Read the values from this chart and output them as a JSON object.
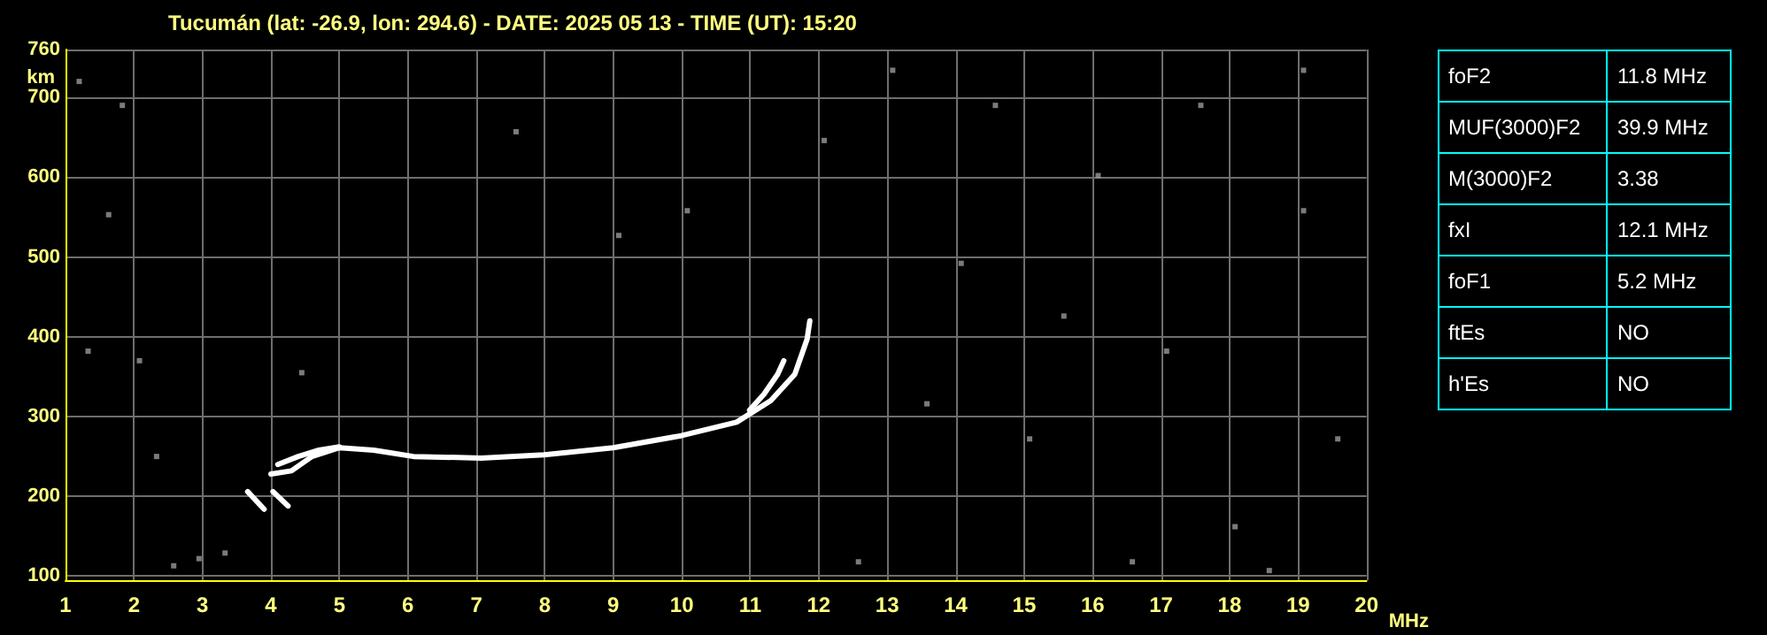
{
  "chart_data": [
    {
      "type": "line",
      "title": "Tucumán (lat: -26.9, lon: 294.6) - DATE: 2025 05 13 - TIME (UT): 15:20",
      "xlabel": "MHz",
      "ylabel": "km",
      "xlim": [
        1,
        20
      ],
      "ylim": [
        95,
        760
      ],
      "xticks": [
        1,
        2,
        3,
        4,
        5,
        6,
        7,
        8,
        9,
        10,
        11,
        12,
        13,
        14,
        15,
        16,
        17,
        18,
        19,
        20
      ],
      "yticks": [
        100,
        200,
        300,
        400,
        500,
        600,
        700,
        760
      ],
      "grid": true,
      "line_style": "solid",
      "series": [
        {
          "color": "#ffffff",
          "x": [
            4.0,
            4.3,
            4.6,
            5.0,
            5.5,
            6.08,
            7.07,
            7.99,
            9.0,
            9.99,
            10.8,
            11.3,
            11.65,
            11.83,
            11.87
          ],
          "values": [
            228,
            232,
            250,
            261,
            258,
            250,
            248,
            252,
            261,
            276,
            293,
            320,
            353,
            397,
            420
          ]
        },
        {
          "color": "#ffffff",
          "x": [
            4.1,
            4.4,
            4.7,
            5.0,
            null,
            10.99,
            11.2,
            11.4,
            11.49
          ],
          "values": [
            240,
            250,
            258,
            262,
            null,
            308,
            328,
            353,
            370
          ]
        },
        {
          "color": "#ffffff",
          "x": [
            3.66,
            3.9,
            null,
            4.03,
            4.25
          ],
          "values": [
            206,
            184,
            null,
            206,
            188
          ]
        },
        {
          "type": "scatter",
          "color": "#9a9a9a",
          "marker": "square",
          "x": [
            1.2,
            1.63,
            2.08,
            2.33,
            2.58,
            2.95,
            3.33,
            1.33,
            1.83,
            4.45,
            7.58,
            9.08,
            10.08,
            12.08,
            13.08,
            14.08,
            15.08,
            16.08,
            17.08,
            18.08,
            19.08,
            19.58,
            12.58,
            16.58,
            18.58,
            15.58,
            17.58,
            13.58,
            14.58,
            19.08
          ],
          "values": [
            720,
            553,
            370,
            250,
            113,
            122,
            129,
            382,
            690,
            355,
            657,
            527,
            558,
            646,
            734,
            492,
            272,
            602,
            382,
            162,
            558,
            272,
            118,
            118,
            107,
            426,
            690,
            316,
            690,
            734
          ]
        }
      ]
    },
    {
      "type": "other",
      "annotations": [
        "foF2",
        "11.8 MHz",
        "MUF(3000)F2",
        "39.9 MHz",
        "M(3000)F2",
        "3.38",
        "fxI",
        "12.1 MHz",
        "foF1",
        "5.2 MHz",
        "ftEs",
        "NO",
        "h'Es",
        "NO"
      ]
    }
  ]
}
